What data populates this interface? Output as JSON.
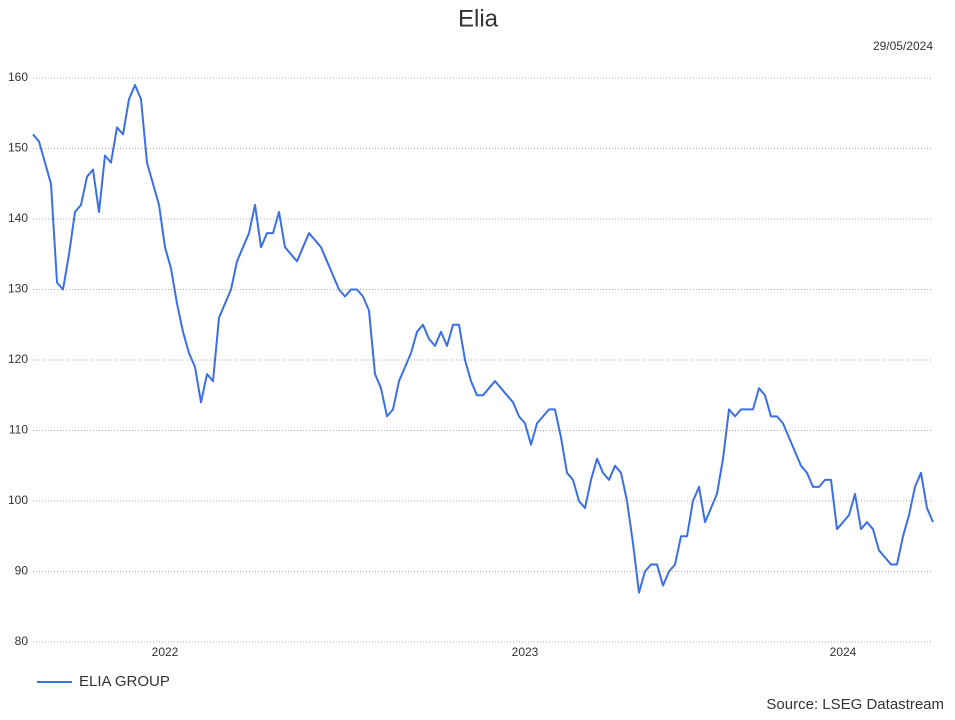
{
  "chart_data": {
    "type": "line",
    "title": "Elia",
    "date": "29/05/2024",
    "source": "Source: LSEG Datastream",
    "categories": [
      null,
      null,
      null,
      null,
      null,
      null,
      null,
      null,
      null,
      null,
      null,
      null,
      null,
      null,
      null,
      null,
      null,
      null,
      null,
      null,
      null,
      null,
      "2022",
      null,
      null,
      null,
      null,
      null,
      null,
      null,
      null,
      null,
      null,
      null,
      null,
      null,
      null,
      null,
      null,
      null,
      null,
      null,
      null,
      null,
      null,
      null,
      null,
      null,
      null,
      null,
      null,
      null,
      null,
      null,
      null,
      null,
      null,
      null,
      null,
      null,
      null,
      null,
      null,
      null,
      null,
      null,
      null,
      null,
      null,
      null,
      null,
      null,
      null,
      null,
      null,
      null,
      null,
      null,
      null,
      null,
      null,
      null,
      "2023",
      null,
      null,
      null,
      null,
      null,
      null,
      null,
      null,
      null,
      null,
      null,
      null,
      null,
      null,
      null,
      null,
      null,
      null,
      null,
      null,
      null,
      null,
      null,
      null,
      null,
      null,
      null,
      null,
      null,
      null,
      null,
      null,
      null,
      null,
      null,
      null,
      null,
      null,
      null,
      null,
      null,
      null,
      null,
      null,
      null,
      null,
      null,
      null,
      null,
      null,
      null,
      null,
      "2024",
      null,
      null,
      null,
      null,
      null,
      null,
      null,
      null,
      null,
      null,
      null,
      null,
      null,
      null,
      null
    ],
    "series": [
      {
        "name": "ELIA GROUP",
        "color": "#3b6fe6",
        "values": [
          152,
          151,
          148,
          145,
          131,
          130,
          135,
          141,
          142,
          146,
          147,
          141,
          149,
          148,
          153,
          152,
          157,
          159,
          157,
          148,
          145,
          142,
          136,
          133,
          128,
          124,
          121,
          119,
          114,
          118,
          117,
          126,
          128,
          130,
          134,
          136,
          138,
          142,
          136,
          138,
          138,
          141,
          136,
          135,
          134,
          136,
          138,
          137,
          136,
          134,
          132,
          130,
          129,
          130,
          130,
          129,
          127,
          118,
          116,
          112,
          113,
          117,
          119,
          121,
          124,
          125,
          123,
          122,
          124,
          122,
          125,
          125,
          120,
          117,
          115,
          115,
          116,
          117,
          116,
          115,
          114,
          112,
          111,
          108,
          111,
          112,
          113,
          113,
          109,
          104,
          103,
          100,
          99,
          103,
          106,
          104,
          103,
          105,
          104,
          100,
          94,
          87,
          90,
          91,
          91,
          88,
          90,
          91,
          95,
          95,
          100,
          102,
          97,
          99,
          101,
          106,
          113,
          112,
          113,
          113,
          113,
          116,
          115,
          112,
          112,
          111,
          109,
          107,
          105,
          104,
          102,
          102,
          103,
          103,
          96,
          97,
          98,
          101,
          96,
          97,
          96,
          93,
          92,
          91,
          91,
          95,
          98,
          102,
          104,
          99,
          97
        ]
      }
    ],
    "ylim": [
      80,
      160
    ],
    "yticks": [
      80,
      90,
      100,
      110,
      120,
      130,
      140,
      150,
      160
    ],
    "grid": true,
    "legend": "bottom-left"
  }
}
